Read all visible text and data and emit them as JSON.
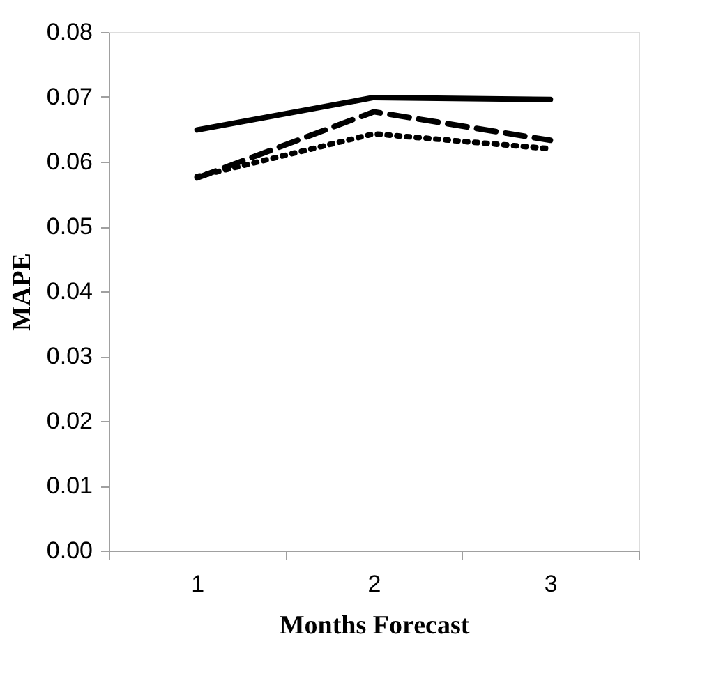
{
  "chart_data": {
    "type": "line",
    "xlabel": "Months Forecast",
    "ylabel": "MAPE",
    "categories": [
      "1",
      "2",
      "3"
    ],
    "series": [
      {
        "color": "#000000",
        "line_style": "solid",
        "values": [
          0.0649,
          0.0699,
          0.0696
        ]
      },
      {
        "color": "#000000",
        "line_style": "dashed",
        "values": [
          0.0575,
          0.0677,
          0.0633
        ]
      },
      {
        "color": "#000000",
        "line_style": "dotted",
        "values": [
          0.0577,
          0.0643,
          0.062
        ]
      }
    ],
    "ylim": [
      0,
      0.08
    ],
    "yticks": [
      {
        "value": 0,
        "label": "0.00"
      },
      {
        "value": 0.01,
        "label": "0.01"
      },
      {
        "value": 0.02,
        "label": "0.02"
      },
      {
        "value": 0.03,
        "label": "0.03"
      },
      {
        "value": 0.04,
        "label": "0.04"
      },
      {
        "value": 0.05,
        "label": "0.05"
      },
      {
        "value": 0.06,
        "label": "0.06"
      },
      {
        "value": 0.07,
        "label": "0.07"
      },
      {
        "value": 0.08,
        "label": "0.08"
      }
    ],
    "grid": false,
    "legend": false,
    "marker": "none"
  }
}
